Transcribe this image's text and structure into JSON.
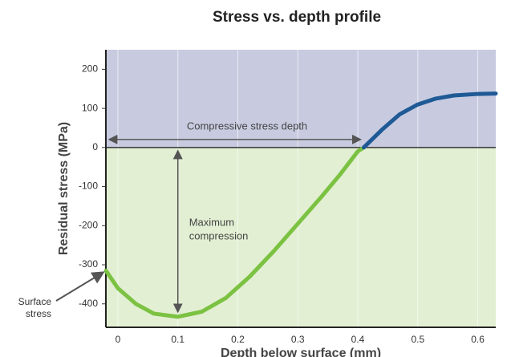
{
  "chart_data": {
    "type": "line",
    "title": "Stress vs. depth profile",
    "xlabel": "Depth below surface (mm)",
    "ylabel": "Residual stress (MPa)",
    "series": [
      {
        "color": "#7cc242",
        "x": [
          -0.02,
          0,
          0.03,
          0.06,
          0.1,
          0.14,
          0.18,
          0.22,
          0.26,
          0.3,
          0.34,
          0.37,
          0.4,
          0.41
        ],
        "values": [
          -315,
          -360,
          -400,
          -425,
          -433,
          -420,
          -385,
          -330,
          -265,
          -195,
          -125,
          -70,
          -10,
          0
        ]
      },
      {
        "color": "#1f5a96",
        "x": [
          0.41,
          0.44,
          0.47,
          0.5,
          0.53,
          0.56,
          0.6,
          0.63
        ],
        "values": [
          0,
          45,
          85,
          110,
          125,
          133,
          137,
          138
        ]
      }
    ],
    "annotations": {
      "depth": "Compressive stress depth",
      "max": [
        "Maximum",
        "compression"
      ],
      "surface": [
        "Surface",
        "stress"
      ]
    },
    "xlim": [
      -0.02,
      0.63
    ],
    "ylim": [
      -460,
      250
    ],
    "xticks": [
      0,
      0.1,
      0.2,
      0.3,
      0.4,
      0.5,
      0.6
    ],
    "yticks": [
      200,
      100,
      0,
      -100,
      -200,
      -300,
      -400
    ],
    "grid": true
  }
}
